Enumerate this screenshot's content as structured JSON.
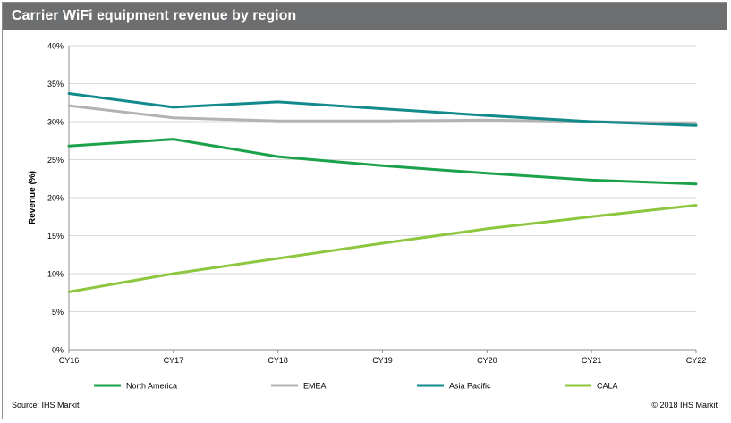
{
  "header": {
    "title": "Carrier WiFi equipment revenue by region"
  },
  "footer": {
    "source": "Source:  IHS Markit",
    "copyright": "© 2018 IHS Markit"
  },
  "chart_data": {
    "type": "line",
    "title": "Carrier WiFi equipment revenue by region",
    "xlabel": "",
    "ylabel": "Revenue (%)",
    "categories": [
      "CY16",
      "CY17",
      "CY18",
      "CY19",
      "CY20",
      "CY21",
      "CY22"
    ],
    "ylim": [
      0,
      40
    ],
    "yticks": [
      0,
      5,
      10,
      15,
      20,
      25,
      30,
      35,
      40
    ],
    "ytick_labels": [
      "0%",
      "5%",
      "10%",
      "15%",
      "20%",
      "25%",
      "30%",
      "35%",
      "40%"
    ],
    "grid": true,
    "legend_position": "bottom",
    "series": [
      {
        "name": "North America",
        "color": "#1aa14a",
        "values": [
          26.8,
          27.7,
          25.4,
          24.2,
          23.2,
          22.3,
          21.8
        ]
      },
      {
        "name": "EMEA",
        "color": "#b1b3b4",
        "values": [
          32.1,
          30.5,
          30.1,
          30.1,
          30.2,
          30.0,
          29.8
        ]
      },
      {
        "name": "Asia Pacific",
        "color": "#128a8c",
        "values": [
          33.7,
          31.9,
          32.6,
          31.7,
          30.8,
          30.0,
          29.5
        ]
      },
      {
        "name": "CALA",
        "color": "#8dc63f",
        "values": [
          7.6,
          10.0,
          12.0,
          14.0,
          15.9,
          17.5,
          19.0
        ]
      }
    ]
  }
}
